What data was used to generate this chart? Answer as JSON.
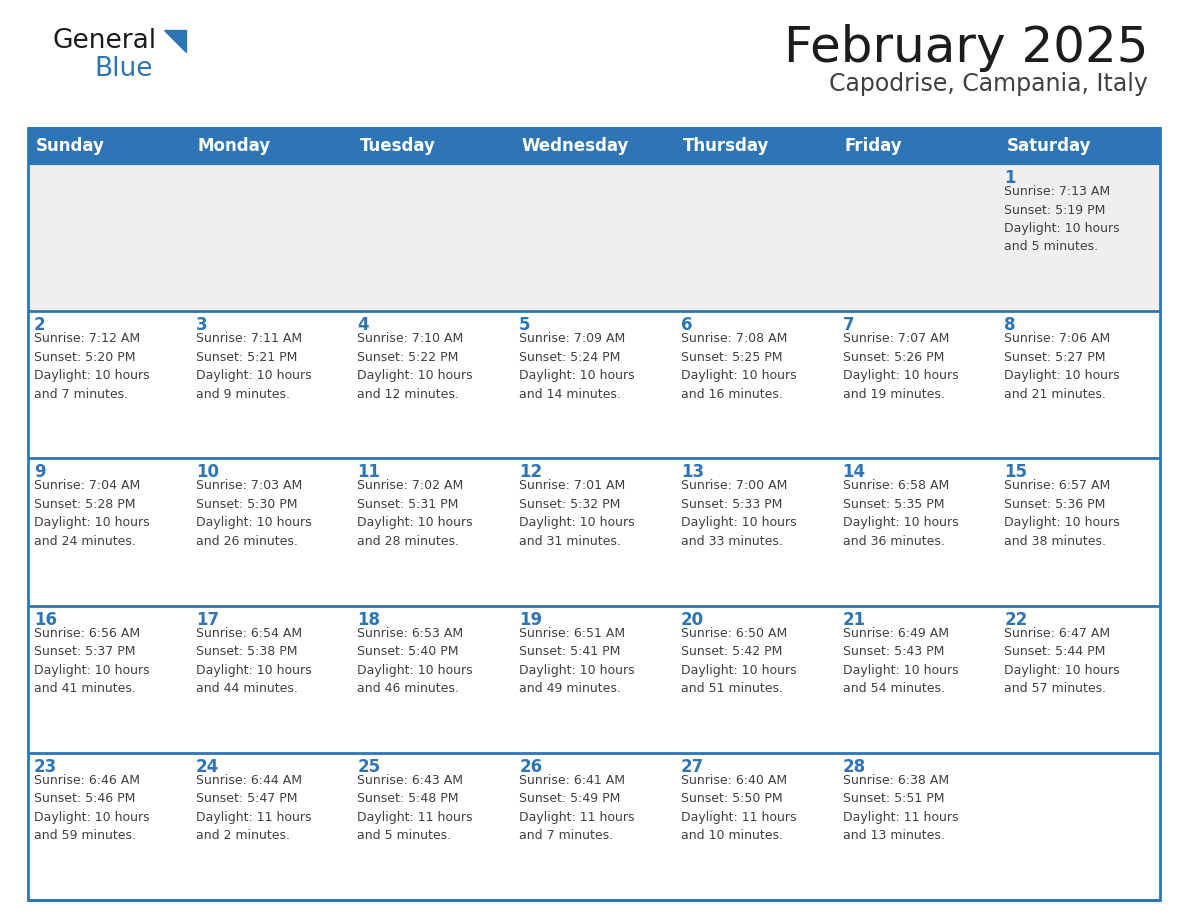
{
  "title": "February 2025",
  "subtitle": "Capodrise, Campania, Italy",
  "days_of_week": [
    "Sunday",
    "Monday",
    "Tuesday",
    "Wednesday",
    "Thursday",
    "Friday",
    "Saturday"
  ],
  "header_bg": "#2E75B6",
  "header_text_color": "#FFFFFF",
  "cell_bg_week1": "#EFEFEF",
  "cell_bg_main": "#FFFFFF",
  "day_number_color": "#2E75B6",
  "info_text_color": "#404040",
  "border_color": "#2E75B6",
  "weeks": [
    [
      {
        "day": null,
        "info": null
      },
      {
        "day": null,
        "info": null
      },
      {
        "day": null,
        "info": null
      },
      {
        "day": null,
        "info": null
      },
      {
        "day": null,
        "info": null
      },
      {
        "day": null,
        "info": null
      },
      {
        "day": 1,
        "info": "Sunrise: 7:13 AM\nSunset: 5:19 PM\nDaylight: 10 hours\nand 5 minutes."
      }
    ],
    [
      {
        "day": 2,
        "info": "Sunrise: 7:12 AM\nSunset: 5:20 PM\nDaylight: 10 hours\nand 7 minutes."
      },
      {
        "day": 3,
        "info": "Sunrise: 7:11 AM\nSunset: 5:21 PM\nDaylight: 10 hours\nand 9 minutes."
      },
      {
        "day": 4,
        "info": "Sunrise: 7:10 AM\nSunset: 5:22 PM\nDaylight: 10 hours\nand 12 minutes."
      },
      {
        "day": 5,
        "info": "Sunrise: 7:09 AM\nSunset: 5:24 PM\nDaylight: 10 hours\nand 14 minutes."
      },
      {
        "day": 6,
        "info": "Sunrise: 7:08 AM\nSunset: 5:25 PM\nDaylight: 10 hours\nand 16 minutes."
      },
      {
        "day": 7,
        "info": "Sunrise: 7:07 AM\nSunset: 5:26 PM\nDaylight: 10 hours\nand 19 minutes."
      },
      {
        "day": 8,
        "info": "Sunrise: 7:06 AM\nSunset: 5:27 PM\nDaylight: 10 hours\nand 21 minutes."
      }
    ],
    [
      {
        "day": 9,
        "info": "Sunrise: 7:04 AM\nSunset: 5:28 PM\nDaylight: 10 hours\nand 24 minutes."
      },
      {
        "day": 10,
        "info": "Sunrise: 7:03 AM\nSunset: 5:30 PM\nDaylight: 10 hours\nand 26 minutes."
      },
      {
        "day": 11,
        "info": "Sunrise: 7:02 AM\nSunset: 5:31 PM\nDaylight: 10 hours\nand 28 minutes."
      },
      {
        "day": 12,
        "info": "Sunrise: 7:01 AM\nSunset: 5:32 PM\nDaylight: 10 hours\nand 31 minutes."
      },
      {
        "day": 13,
        "info": "Sunrise: 7:00 AM\nSunset: 5:33 PM\nDaylight: 10 hours\nand 33 minutes."
      },
      {
        "day": 14,
        "info": "Sunrise: 6:58 AM\nSunset: 5:35 PM\nDaylight: 10 hours\nand 36 minutes."
      },
      {
        "day": 15,
        "info": "Sunrise: 6:57 AM\nSunset: 5:36 PM\nDaylight: 10 hours\nand 38 minutes."
      }
    ],
    [
      {
        "day": 16,
        "info": "Sunrise: 6:56 AM\nSunset: 5:37 PM\nDaylight: 10 hours\nand 41 minutes."
      },
      {
        "day": 17,
        "info": "Sunrise: 6:54 AM\nSunset: 5:38 PM\nDaylight: 10 hours\nand 44 minutes."
      },
      {
        "day": 18,
        "info": "Sunrise: 6:53 AM\nSunset: 5:40 PM\nDaylight: 10 hours\nand 46 minutes."
      },
      {
        "day": 19,
        "info": "Sunrise: 6:51 AM\nSunset: 5:41 PM\nDaylight: 10 hours\nand 49 minutes."
      },
      {
        "day": 20,
        "info": "Sunrise: 6:50 AM\nSunset: 5:42 PM\nDaylight: 10 hours\nand 51 minutes."
      },
      {
        "day": 21,
        "info": "Sunrise: 6:49 AM\nSunset: 5:43 PM\nDaylight: 10 hours\nand 54 minutes."
      },
      {
        "day": 22,
        "info": "Sunrise: 6:47 AM\nSunset: 5:44 PM\nDaylight: 10 hours\nand 57 minutes."
      }
    ],
    [
      {
        "day": 23,
        "info": "Sunrise: 6:46 AM\nSunset: 5:46 PM\nDaylight: 10 hours\nand 59 minutes."
      },
      {
        "day": 24,
        "info": "Sunrise: 6:44 AM\nSunset: 5:47 PM\nDaylight: 11 hours\nand 2 minutes."
      },
      {
        "day": 25,
        "info": "Sunrise: 6:43 AM\nSunset: 5:48 PM\nDaylight: 11 hours\nand 5 minutes."
      },
      {
        "day": 26,
        "info": "Sunrise: 6:41 AM\nSunset: 5:49 PM\nDaylight: 11 hours\nand 7 minutes."
      },
      {
        "day": 27,
        "info": "Sunrise: 6:40 AM\nSunset: 5:50 PM\nDaylight: 11 hours\nand 10 minutes."
      },
      {
        "day": 28,
        "info": "Sunrise: 6:38 AM\nSunset: 5:51 PM\nDaylight: 11 hours\nand 13 minutes."
      },
      {
        "day": null,
        "info": null
      }
    ]
  ]
}
